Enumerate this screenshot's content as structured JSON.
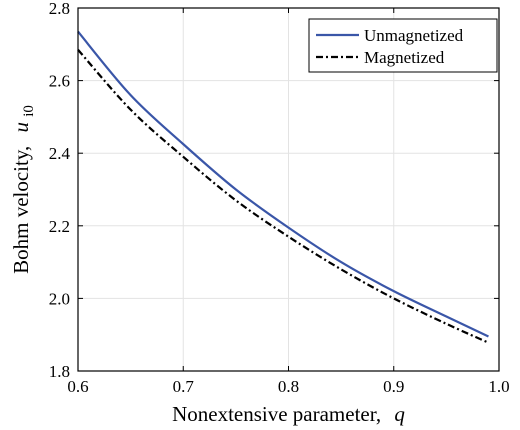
{
  "chart_data": {
    "type": "line",
    "xlabel_text": "Nonextensive parameter,",
    "xlabel_symbol": "q",
    "ylabel_text": "Bohm velocity,",
    "ylabel_symbol": "u",
    "ylabel_subscript": "i0",
    "xlim": [
      0.6,
      1.0
    ],
    "ylim": [
      1.8,
      2.8
    ],
    "xticks": [
      "0.6",
      "0.7",
      "0.8",
      "0.9",
      "1.0"
    ],
    "yticks": [
      "1.8",
      "2.0",
      "2.2",
      "2.4",
      "2.6",
      "2.8"
    ],
    "grid": true,
    "legend_position": "top-right",
    "series": [
      {
        "name": "Unmagnetized",
        "color": "#3a56a8",
        "style": "solid",
        "x": [
          0.6,
          0.65,
          0.7,
          0.75,
          0.8,
          0.85,
          0.9,
          0.95,
          0.99
        ],
        "y": [
          2.735,
          2.56,
          2.425,
          2.3,
          2.195,
          2.1,
          2.02,
          1.95,
          1.895
        ]
      },
      {
        "name": "Magnetized",
        "color": "#000000",
        "style": "dashdot",
        "x": [
          0.6,
          0.65,
          0.7,
          0.75,
          0.8,
          0.85,
          0.9,
          0.95,
          0.99
        ],
        "y": [
          2.685,
          2.52,
          2.39,
          2.27,
          2.17,
          2.08,
          2.0,
          1.93,
          1.878
        ]
      }
    ]
  }
}
